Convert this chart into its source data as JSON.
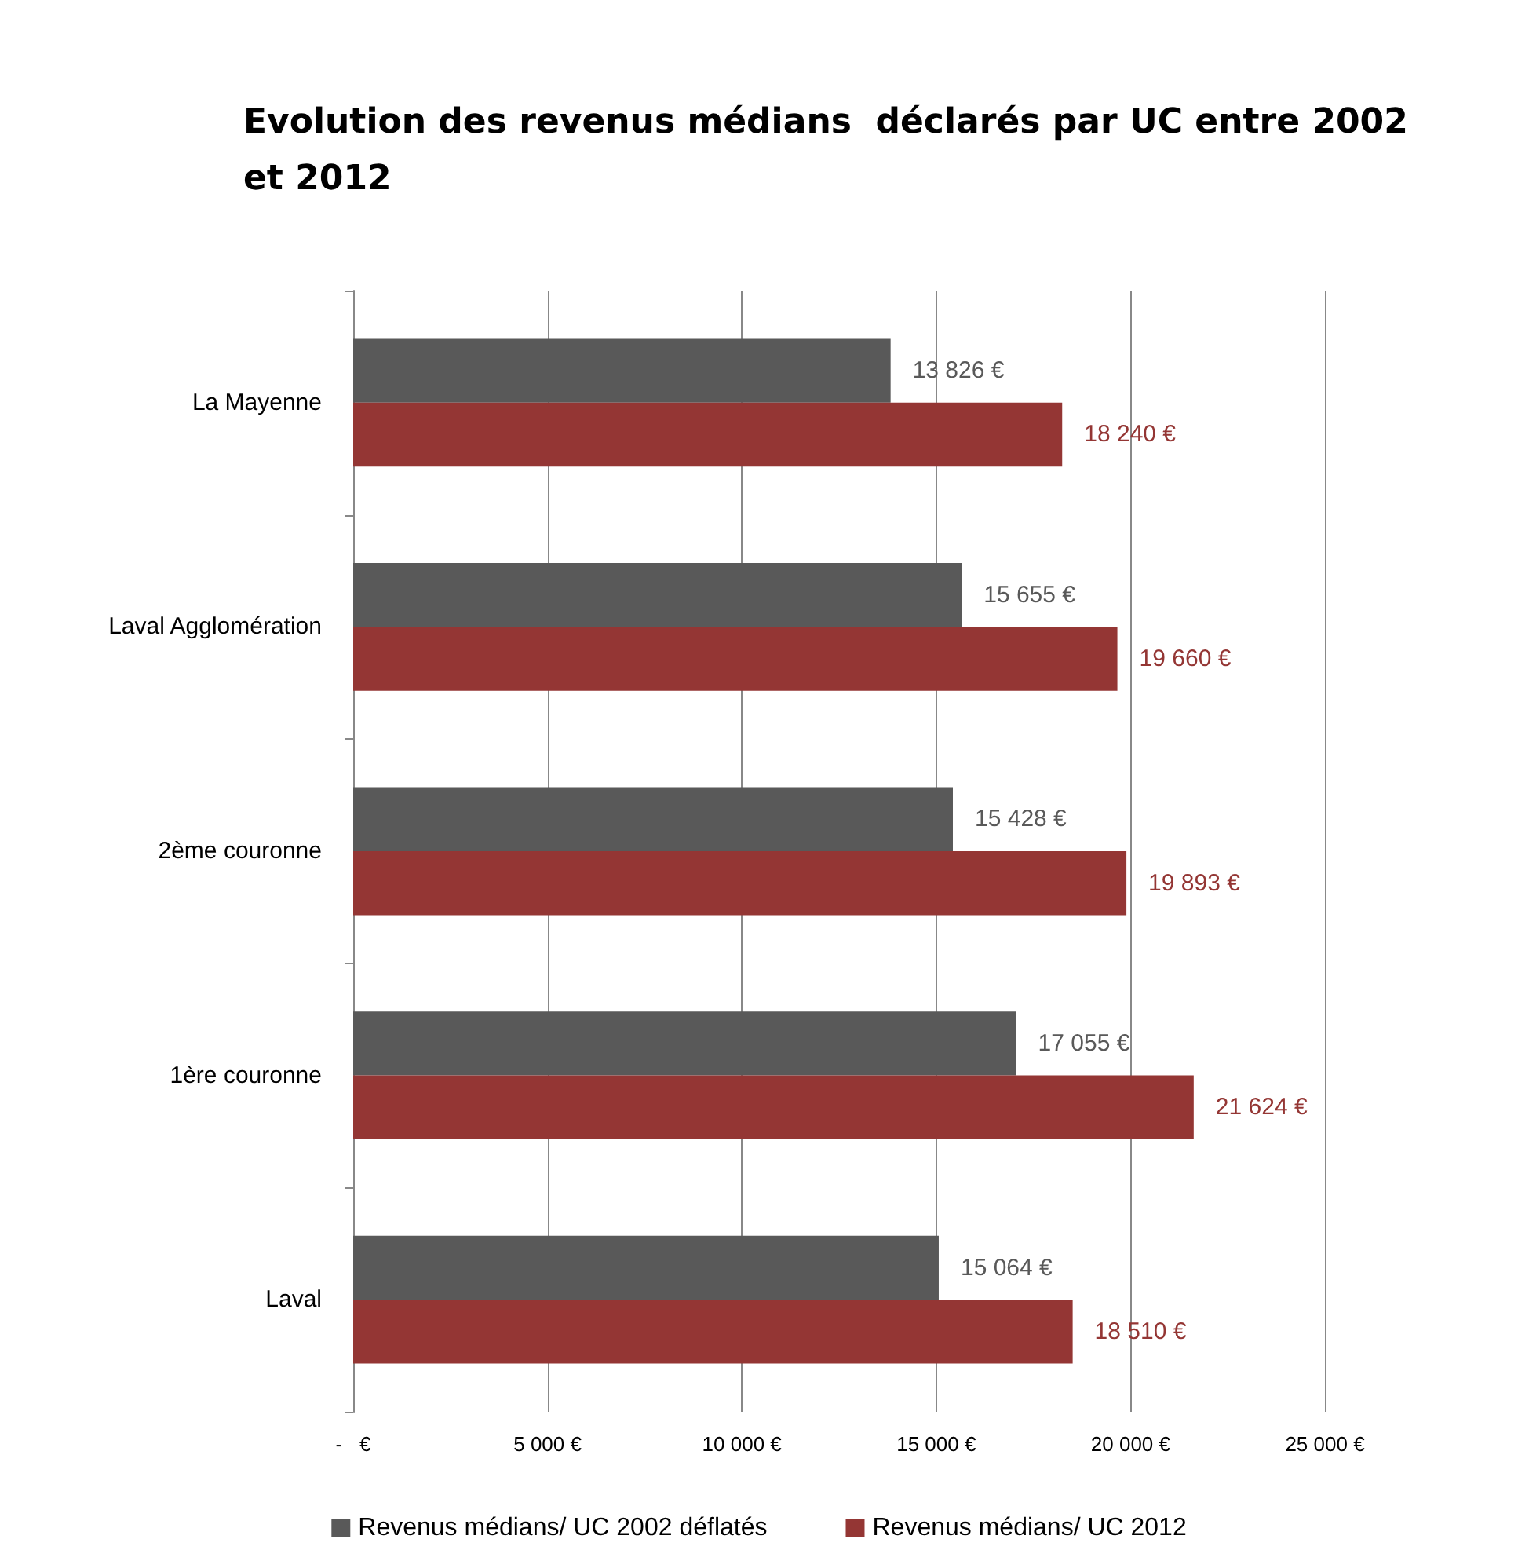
{
  "chart_data": {
    "type": "bar",
    "orientation": "horizontal",
    "title": "Evolution des revenus médians  déclarés par UC entre 2002 et 2012",
    "categories": [
      "La Mayenne",
      "Laval Agglomération",
      "2ème couronne",
      "1ère couronne",
      "Laval"
    ],
    "series": [
      {
        "name": "Revenus médians/ UC 2002 déflatés",
        "color": "#595959",
        "values": [
          13826,
          15655,
          15428,
          17055,
          15064
        ],
        "value_labels": [
          "13 826 €",
          "15 655 €",
          "15 428 €",
          "17 055 €",
          "15 064 €"
        ]
      },
      {
        "name": "Revenus médians/ UC 2012",
        "color": "#943634",
        "values": [
          18240,
          19660,
          19893,
          21624,
          18510
        ],
        "value_labels": [
          "18 240 €",
          "19 660 €",
          "19 893 €",
          "21 624 €",
          "18 510 €"
        ]
      }
    ],
    "xlim": [
      0,
      25000
    ],
    "xticks": [
      {
        "value": 0,
        "label": "-   €"
      },
      {
        "value": 5000,
        "label": "5 000 €"
      },
      {
        "value": 10000,
        "label": "10 000 €"
      },
      {
        "value": 15000,
        "label": "15 000 €"
      },
      {
        "value": 20000,
        "label": "20 000 €"
      },
      {
        "value": 25000,
        "label": "25 000 €"
      }
    ],
    "grid": "x",
    "legend": "bottom"
  }
}
